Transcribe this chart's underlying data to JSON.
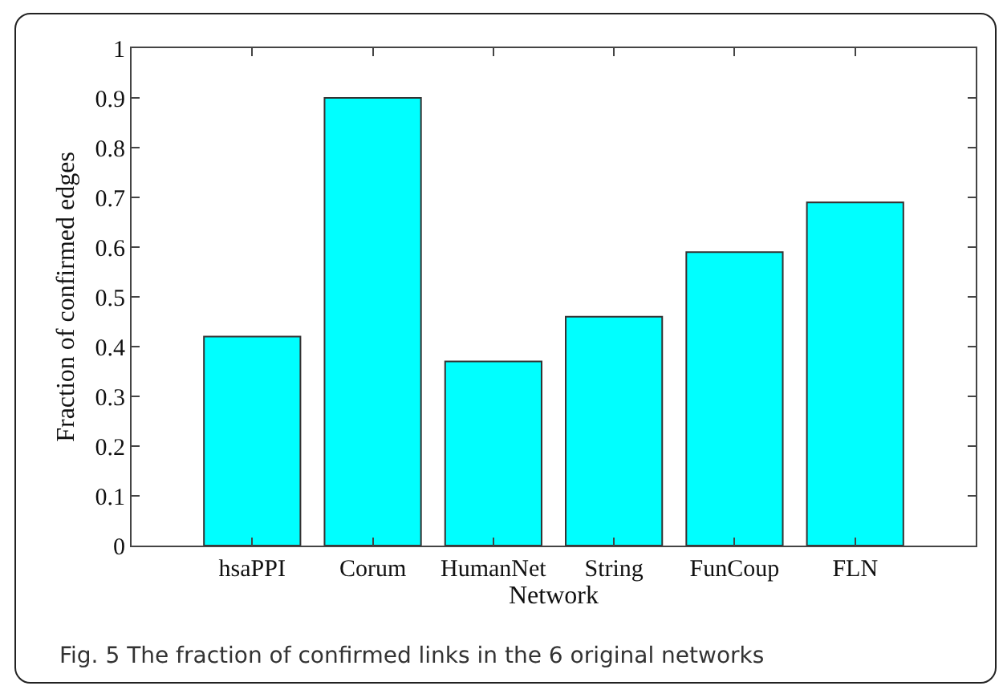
{
  "chart_data": {
    "type": "bar",
    "categories": [
      "hsaPPI",
      "Corum",
      "HumanNet",
      "String",
      "FunCoup",
      "FLN"
    ],
    "values": [
      0.42,
      0.9,
      0.37,
      0.46,
      0.59,
      0.69
    ],
    "color": "#00ffff",
    "xlabel": "Network",
    "ylabel": "Fraction of confirmed edges",
    "ylim": [
      0,
      1
    ],
    "yticks": [
      0,
      0.1,
      0.2,
      0.3,
      0.4,
      0.5,
      0.6,
      0.7,
      0.8,
      0.9,
      1
    ],
    "grid": false,
    "annotations": [
      "Fig. 5 The fraction of confirmed links in the 6 original networks"
    ]
  }
}
